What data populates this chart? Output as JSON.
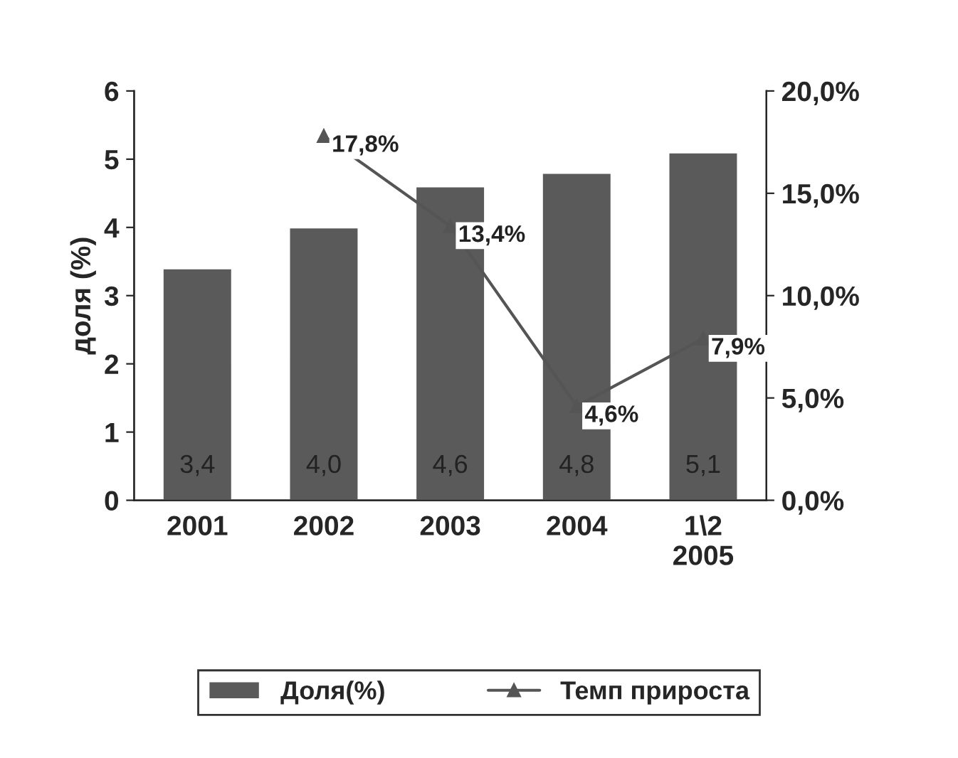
{
  "chart_data": {
    "type": "bar",
    "ylabel": "доля (%)",
    "categories": [
      "2001",
      "2002",
      "2003",
      "2004",
      "1\\2\n2005"
    ],
    "series": [
      {
        "name": "Доля(%)",
        "color": "#5a5a5a",
        "values": [
          3.4,
          4.0,
          4.6,
          4.8,
          5.1
        ],
        "value_labels": [
          "3,4",
          "4,0",
          "4,6",
          "4,8",
          "5,1"
        ]
      },
      {
        "name": "Темп прироста",
        "type": "line",
        "axis": "y2",
        "color": "#555555",
        "marker": "triangle",
        "values": [
          null,
          17.8,
          13.4,
          4.6,
          7.9
        ],
        "value_labels": [
          null,
          "17,8%",
          "13,4%",
          "4,6%",
          "7,9%"
        ]
      }
    ],
    "ylim": [
      0,
      6
    ],
    "yticks": [
      0,
      1,
      2,
      3,
      4,
      5,
      6
    ],
    "y2lim": [
      0,
      20
    ],
    "y2ticks": [
      {
        "value": 0,
        "label": "0,0%"
      },
      {
        "value": 5,
        "label": "5,0%"
      },
      {
        "value": 10,
        "label": "10,0%"
      },
      {
        "value": 15,
        "label": "15,0%"
      },
      {
        "value": 20,
        "label": "20,0%"
      }
    ],
    "grid": false,
    "legend": "bottom"
  }
}
